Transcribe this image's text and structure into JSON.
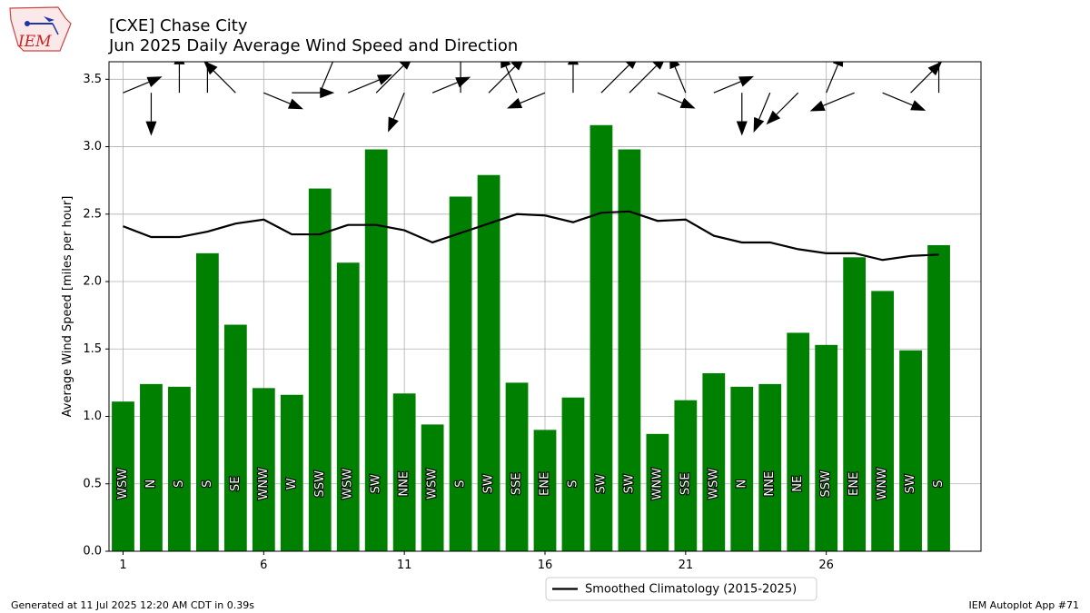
{
  "header": {
    "title_line1": "[CXE] Chase City",
    "title_line2": "Jun 2025 Daily Average Wind Speed and Direction",
    "logo_text": "IEM"
  },
  "footer": {
    "generated": "Generated at 11 Jul 2025 12:20 AM CDT in 0.39s",
    "app": "IEM Autoplot App #71"
  },
  "chart_data": {
    "type": "bar",
    "ylabel": "Average Wind Speed [miles per hour]",
    "ylim": [
      0,
      3.63
    ],
    "xlim": [
      0.5,
      31.5
    ],
    "y_ticks": [
      "0.0",
      "0.5",
      "1.0",
      "1.5",
      "2.0",
      "2.5",
      "3.0",
      "3.5"
    ],
    "x_ticks": [
      "1",
      "6",
      "11",
      "16",
      "21",
      "26"
    ],
    "grid": true,
    "bar_color": "#008000",
    "line_color": "#000000",
    "days": [
      1,
      2,
      3,
      4,
      5,
      6,
      7,
      8,
      9,
      10,
      11,
      12,
      13,
      14,
      15,
      16,
      17,
      18,
      19,
      20,
      21,
      22,
      23,
      24,
      25,
      26,
      27,
      28,
      29,
      30
    ],
    "values": [
      1.11,
      1.24,
      1.22,
      2.21,
      1.68,
      1.21,
      1.16,
      2.69,
      2.14,
      2.98,
      1.17,
      0.94,
      2.63,
      2.79,
      1.25,
      0.9,
      1.14,
      3.16,
      2.98,
      0.87,
      1.12,
      1.32,
      1.22,
      1.24,
      1.62,
      1.53,
      2.18,
      1.93,
      1.49,
      2.27
    ],
    "directions": [
      "WSW",
      "N",
      "S",
      "S",
      "SE",
      "WNW",
      "W",
      "SSW",
      "WSW",
      "SW",
      "NNE",
      "WSW",
      "S",
      "SW",
      "SSE",
      "ENE",
      "S",
      "SW",
      "SW",
      "WNW",
      "SSE",
      "WSW",
      "N",
      "NNE",
      "NE",
      "SSW",
      "ENE",
      "WNW",
      "SW",
      "S"
    ],
    "climatology": {
      "name": "Smoothed Climatology (2015-2025)",
      "values": [
        2.41,
        2.33,
        2.33,
        2.37,
        2.43,
        2.46,
        2.35,
        2.35,
        2.42,
        2.42,
        2.38,
        2.29,
        2.36,
        2.43,
        2.5,
        2.49,
        2.44,
        2.51,
        2.52,
        2.45,
        2.46,
        2.34,
        2.29,
        2.29,
        2.24,
        2.21,
        2.21,
        2.16,
        2.19,
        2.2
      ]
    },
    "legend_position": "bottom-center"
  }
}
